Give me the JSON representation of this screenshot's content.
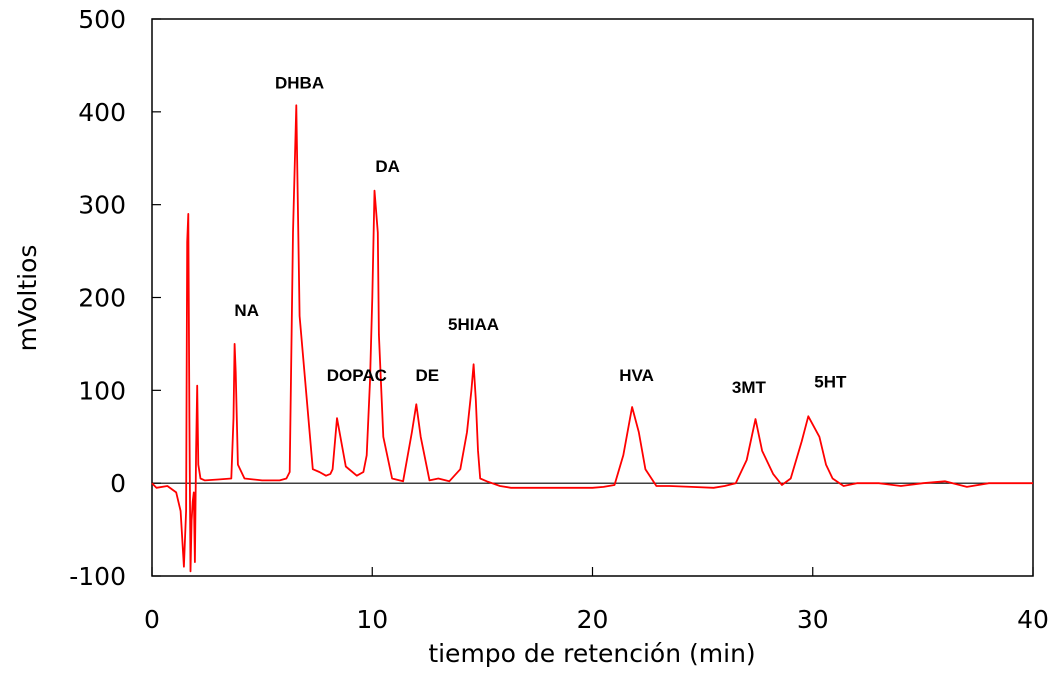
{
  "chart_data": {
    "type": "line",
    "xlabel": "tiempo de retención (min)",
    "ylabel": "mVoltios",
    "xlim": [
      0,
      40
    ],
    "ylim": [
      -100,
      500
    ],
    "xticks": [
      0,
      10,
      20,
      30,
      40
    ],
    "yticks": [
      -100,
      0,
      100,
      200,
      300,
      400,
      500
    ],
    "xtick_labels": [
      "0",
      "10",
      "20",
      "30",
      "40"
    ],
    "ytick_labels": [
      "-100",
      "0",
      "100",
      "200",
      "300",
      "400",
      "500"
    ],
    "grid": false,
    "baseline": 0,
    "series_color": "#ff0000",
    "series": [
      {
        "x": [
          0,
          0.2,
          0.7,
          1.1,
          1.3,
          1.45,
          1.5,
          1.55,
          1.6,
          1.65,
          1.7,
          1.75,
          1.8,
          1.85,
          1.9,
          1.95,
          2.0,
          2.05,
          2.1,
          2.2,
          2.4,
          3.0,
          3.6,
          3.7,
          3.75,
          3.8,
          3.9,
          4.2,
          5.0,
          5.8,
          6.1,
          6.25,
          6.4,
          6.55,
          6.7,
          7.3,
          7.6,
          7.9,
          8.1,
          8.2,
          8.4,
          8.8,
          9.3,
          9.6,
          9.75,
          9.9,
          10.0,
          10.1,
          10.25,
          10.3,
          10.5,
          10.9,
          11.4,
          11.8,
          12.0,
          12.2,
          12.6,
          13.0,
          13.5,
          14.0,
          14.3,
          14.5,
          14.6,
          14.7,
          14.8,
          14.9,
          15.2,
          15.8,
          16.3,
          17.0,
          18.0,
          19.0,
          20.0,
          20.5,
          21.0,
          21.4,
          21.8,
          22.1,
          22.4,
          22.9,
          23.5,
          24.5,
          25.5,
          26.0,
          26.5,
          27.0,
          27.4,
          27.7,
          28.2,
          28.6,
          29.0,
          29.5,
          29.8,
          30.3,
          30.6,
          30.9,
          31.4,
          32.0,
          33.0,
          34.0,
          35.0,
          36.0,
          37.0,
          38.0,
          39.0,
          40.0
        ],
        "y": [
          0,
          -5,
          -3,
          -10,
          -30,
          -90,
          -60,
          -30,
          260,
          290,
          70,
          -95,
          -40,
          -20,
          -10,
          -85,
          35,
          105,
          20,
          5,
          3,
          4,
          5,
          70,
          150,
          120,
          20,
          5,
          3,
          3,
          5,
          12,
          270,
          407,
          180,
          15,
          12,
          8,
          10,
          15,
          70,
          18,
          8,
          12,
          30,
          110,
          200,
          315,
          270,
          160,
          50,
          5,
          2,
          55,
          85,
          50,
          3,
          5,
          2,
          15,
          55,
          100,
          128,
          90,
          35,
          5,
          2,
          -3,
          -5,
          -5,
          -5,
          -5,
          -5,
          -4,
          -2,
          30,
          82,
          55,
          15,
          -3,
          -3,
          -4,
          -5,
          -3,
          0,
          25,
          69,
          35,
          10,
          -2,
          5,
          45,
          72,
          50,
          20,
          5,
          -3,
          0,
          0,
          -3,
          0,
          2,
          -4,
          0,
          0,
          0
        ]
      }
    ],
    "annotations": [
      {
        "text": "DHBA",
        "x": 6.7,
        "y": 425
      },
      {
        "text": "DA",
        "x": 10.7,
        "y": 335
      },
      {
        "text": "NA",
        "x": 4.3,
        "y": 180
      },
      {
        "text": "5HIAA",
        "x": 14.6,
        "y": 165
      },
      {
        "text": "DOPAC",
        "x": 9.3,
        "y": 110
      },
      {
        "text": "DE",
        "x": 12.5,
        "y": 110
      },
      {
        "text": "HVA",
        "x": 22.0,
        "y": 110
      },
      {
        "text": "3MT",
        "x": 27.1,
        "y": 97
      },
      {
        "text": "5HT",
        "x": 30.8,
        "y": 103
      }
    ]
  }
}
